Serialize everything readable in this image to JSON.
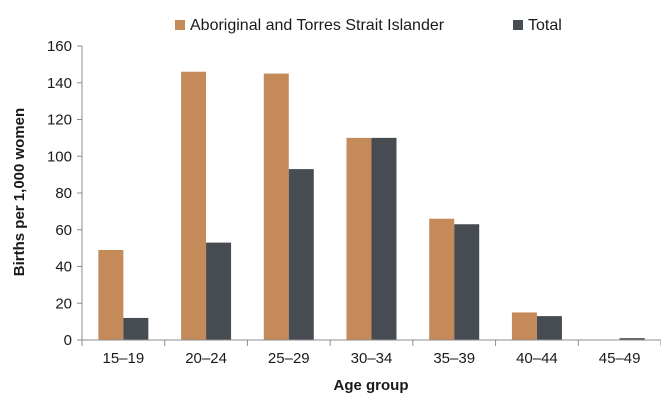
{
  "chart_data": {
    "type": "bar",
    "title": "",
    "xlabel": "Age group",
    "ylabel": "Births per 1,000 women",
    "categories": [
      "15–19",
      "20–24",
      "25–29",
      "30–34",
      "35–39",
      "40–44",
      "45–49"
    ],
    "series": [
      {
        "name": "Aboriginal and Torres Strait Islander",
        "color": "#c48a5a",
        "values": [
          49,
          146,
          145,
          110,
          66,
          15,
          0
        ]
      },
      {
        "name": "Total",
        "color": "#474b52",
        "values": [
          12,
          53,
          93,
          110,
          63,
          13,
          1
        ]
      }
    ],
    "ylim": [
      0,
      160
    ],
    "yticks": [
      0,
      20,
      40,
      60,
      80,
      100,
      120,
      140,
      160
    ],
    "grid": false,
    "legend_position": "top"
  }
}
